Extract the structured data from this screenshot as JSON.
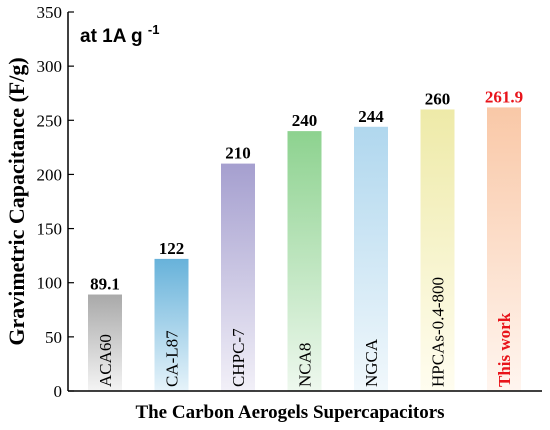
{
  "chart_data": {
    "type": "bar",
    "categories": [
      "ACA60",
      "CA-L87",
      "CHPC-7",
      "NCA8",
      "NGCA",
      "HPCAs-0.4-800",
      "This work"
    ],
    "values": [
      89.1,
      122,
      210,
      240,
      244,
      260,
      261.9
    ],
    "value_labels": [
      "89.1",
      "122",
      "210",
      "240",
      "244",
      "260",
      "261.9"
    ],
    "xlabel": "The Carbon Aerogels Supercapacitors",
    "ylabel": "Gravimetric Capacitance (F/g)",
    "ylim": [
      0,
      350
    ],
    "yticks": [
      0,
      50,
      100,
      150,
      200,
      250,
      300,
      350
    ],
    "annotation": "at 1A g",
    "annotation_sup": "-1",
    "grid": false,
    "legend": "none",
    "bar_colors": [
      [
        "#f4f4f4",
        "#a9a9a9"
      ],
      [
        "#e6f3fa",
        "#67b2da"
      ],
      [
        "#f2f0f8",
        "#a59fcf"
      ],
      [
        "#eef8ee",
        "#8dd28f"
      ],
      [
        "#f1f8fc",
        "#b0d7ee"
      ],
      [
        "#fffdf0",
        "#eeeaa8"
      ],
      [
        "#fff5ef",
        "#f9c8a7"
      ]
    ],
    "label_colors": [
      "#000000",
      "#000000",
      "#000000",
      "#000000",
      "#000000",
      "#000000",
      "#e8141b"
    ]
  }
}
